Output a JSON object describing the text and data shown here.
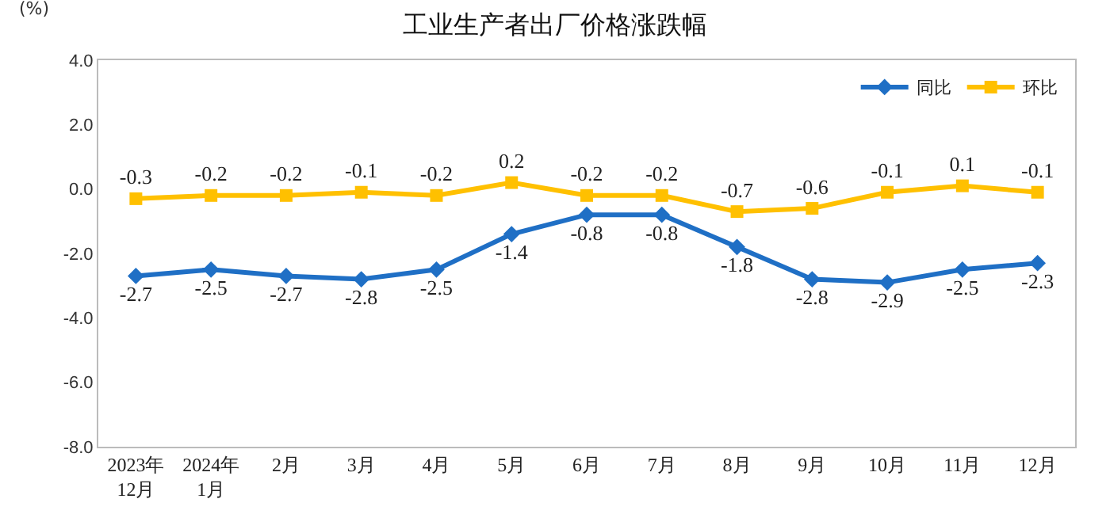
{
  "chart_data": {
    "type": "line",
    "title": "工业生产者出厂价格涨跌幅",
    "ylabel": "(%)",
    "categories": [
      "2023年\n12月",
      "2024年\n1月",
      "2月",
      "3月",
      "4月",
      "5月",
      "6月",
      "7月",
      "8月",
      "9月",
      "10月",
      "11月",
      "12月"
    ],
    "series": [
      {
        "name": "同比",
        "color": "#1f6fc5",
        "marker": "diamond",
        "values": [
          -2.7,
          -2.5,
          -2.7,
          -2.8,
          -2.5,
          -1.4,
          -0.8,
          -0.8,
          -1.8,
          -2.8,
          -2.9,
          -2.5,
          -2.3
        ]
      },
      {
        "name": "环比",
        "color": "#ffc000",
        "marker": "square",
        "values": [
          -0.3,
          -0.2,
          -0.2,
          -0.1,
          -0.2,
          0.2,
          -0.2,
          -0.2,
          -0.7,
          -0.6,
          -0.1,
          0.1,
          -0.1
        ]
      }
    ],
    "ylim": [
      -8,
      4
    ],
    "yticks": [
      {
        "value": 4,
        "label": "4.0"
      },
      {
        "value": 2,
        "label": "2.0"
      },
      {
        "value": 0,
        "label": "0.0"
      },
      {
        "value": -2,
        "label": "-2.0"
      },
      {
        "value": -4,
        "label": "-4.0"
      },
      {
        "value": -6,
        "label": "-6.0"
      },
      {
        "value": -8,
        "label": "-8.0"
      }
    ],
    "data_labels": true,
    "grid": false,
    "legend": "top right",
    "line_style": "solid"
  }
}
